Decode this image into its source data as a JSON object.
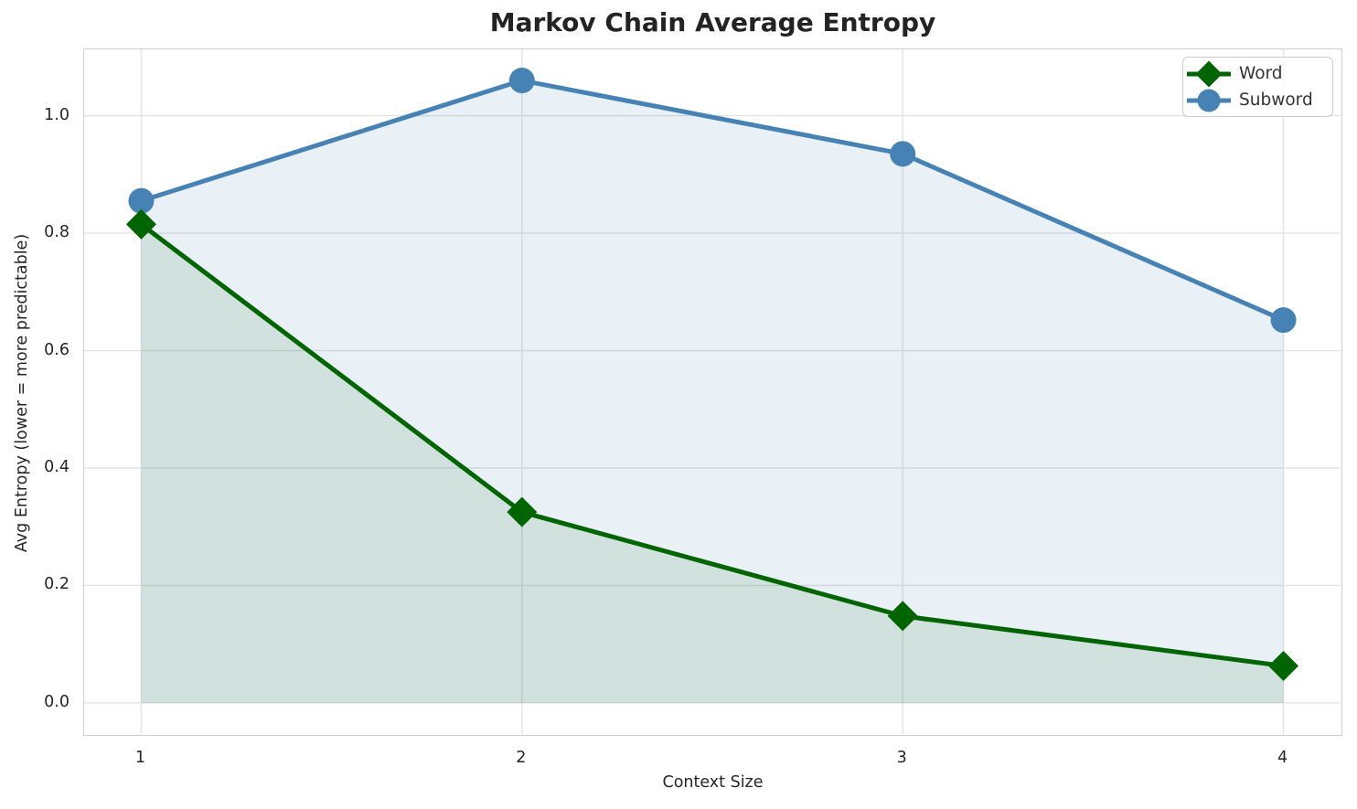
{
  "title": "Markov Chain Average Entropy",
  "chart_data": {
    "type": "line",
    "title": "Markov Chain Average Entropy",
    "xlabel": "Context Size",
    "ylabel": "Avg Entropy (lower = more predictable)",
    "x": [
      1,
      2,
      3,
      4
    ],
    "series": [
      {
        "name": "Word",
        "values": [
          0.815,
          0.325,
          0.148,
          0.063
        ],
        "color": "#006400",
        "marker": "diamond",
        "fill_alpha": 0.1
      },
      {
        "name": "Subword",
        "values": [
          0.855,
          1.06,
          0.935,
          0.652
        ],
        "color": "#4682B4",
        "marker": "circle",
        "fill_alpha": 0.12
      }
    ],
    "area_fill_to_baseline": 0,
    "xlim": [
      0.85,
      4.15
    ],
    "ylim": [
      -0.053,
      1.113
    ],
    "xtick_values": [
      1,
      2,
      3,
      4
    ],
    "xticks": [
      "1",
      "2",
      "3",
      "4"
    ],
    "ytick_values": [
      0.0,
      0.2,
      0.4,
      0.6,
      0.8,
      1.0
    ],
    "yticks": [
      "0.0",
      "0.2",
      "0.4",
      "0.6",
      "0.8",
      "1.0"
    ],
    "grid": true,
    "grid_color": "#e3e3e3",
    "spine_color": "#cfcfcf",
    "legend_position": "upper right",
    "legend": [
      "Word",
      "Subword"
    ],
    "line_width": 5,
    "marker_size": 14
  }
}
